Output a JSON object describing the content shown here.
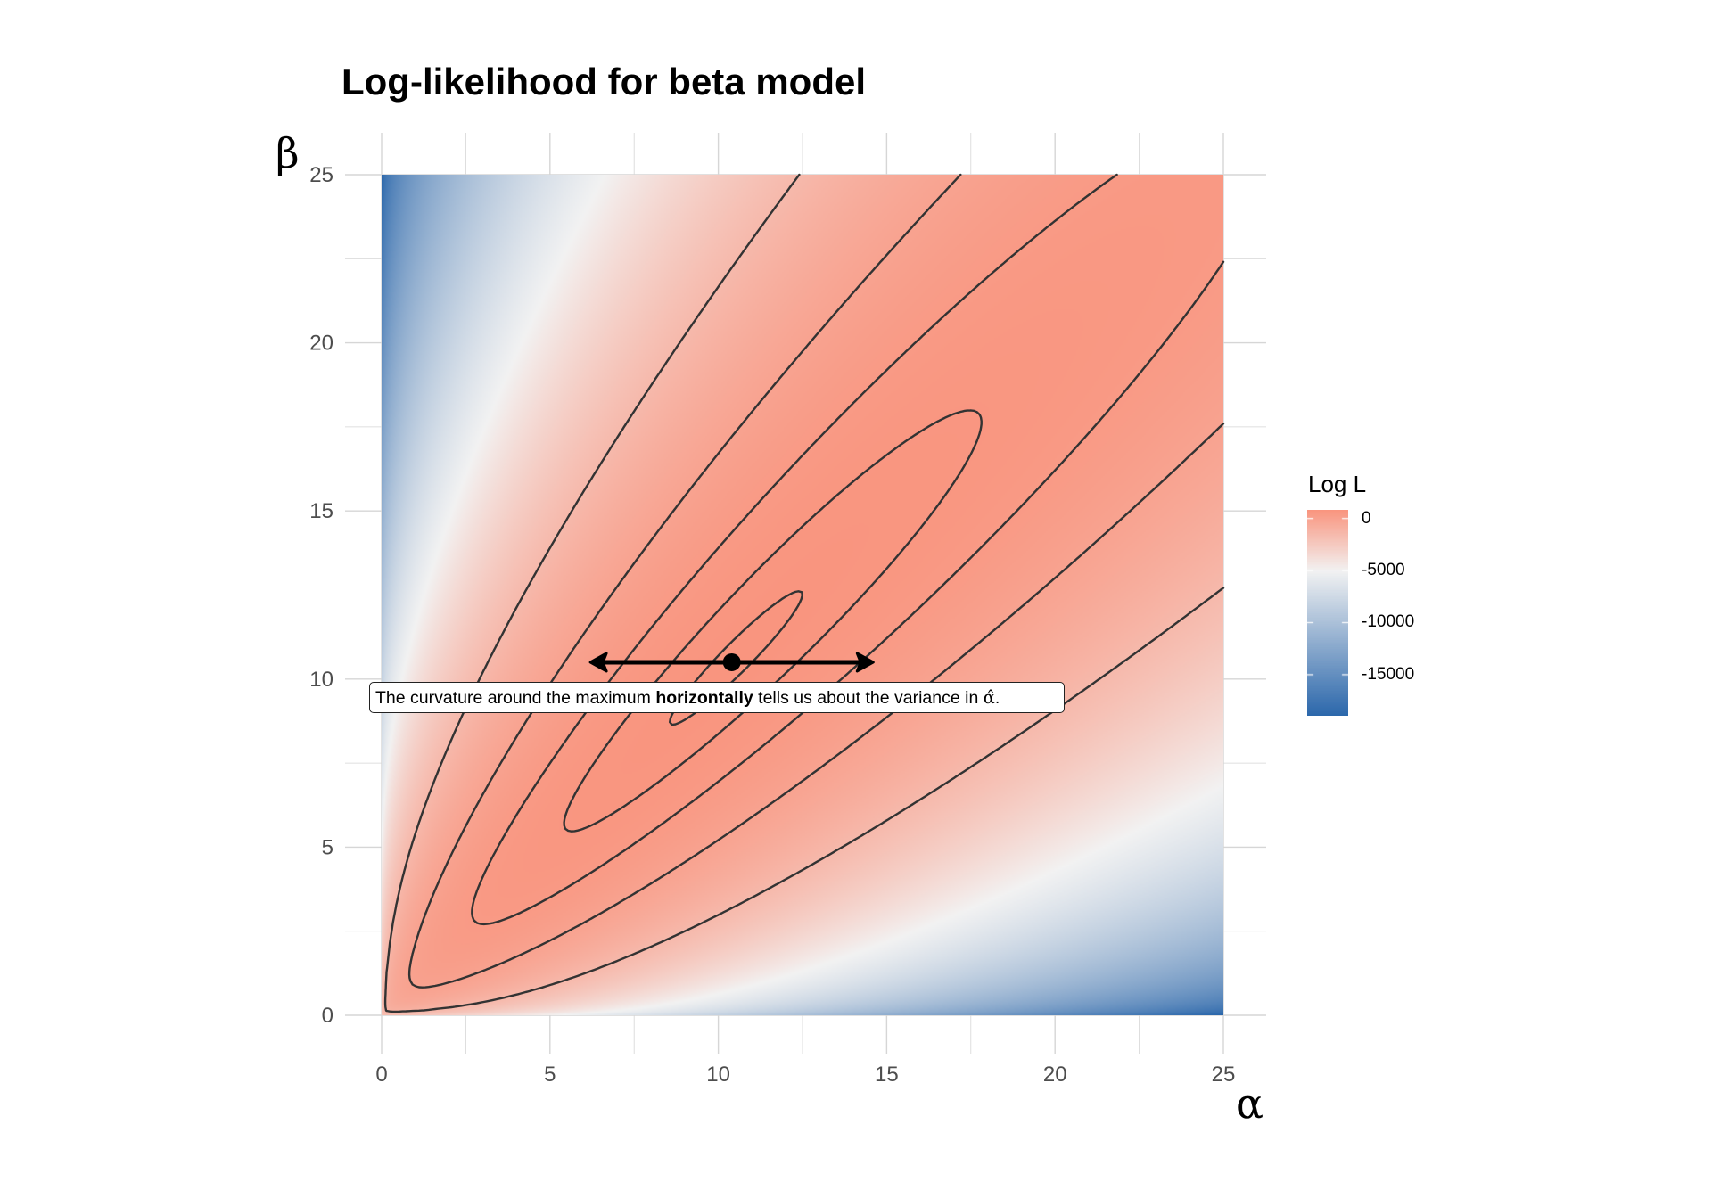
{
  "chart_data": {
    "type": "heatmap",
    "subtype": "contour",
    "title": "Log-likelihood for beta model",
    "xlabel": "α",
    "ylabel": "β",
    "xlim": [
      0,
      25
    ],
    "ylim": [
      0,
      25
    ],
    "x_ticks": [
      0,
      5,
      10,
      15,
      20,
      25
    ],
    "y_ticks": [
      0,
      5,
      10,
      15,
      20,
      25
    ],
    "grid": true,
    "legend": {
      "title": "Log L",
      "position": "right",
      "breaks": [
        0,
        -5000,
        -10000,
        -15000
      ],
      "labels": [
        "0",
        "-5000",
        "-10000",
        "-15000"
      ]
    },
    "colors": {
      "high": "#F9957F",
      "mid": "#F2F2F2",
      "low": "#2B67AB",
      "midpoint": -5000,
      "contour": "#333333"
    },
    "maximum": {
      "alpha": 10.4,
      "beta": 10.5
    },
    "contour_levels": [
      840,
      810,
      730,
      500,
      -50,
      -1450
    ],
    "arrow": {
      "beta": 10.5,
      "alpha_from": 6.2,
      "alpha_to": 14.6,
      "direction": "both"
    },
    "annotation": {
      "beta": 9.5,
      "text_before": "The curvature around the maximum ",
      "text_bold": "horizontally",
      "text_after": " tells us about the variance in ",
      "symbol": "α̂",
      "end": "."
    }
  }
}
